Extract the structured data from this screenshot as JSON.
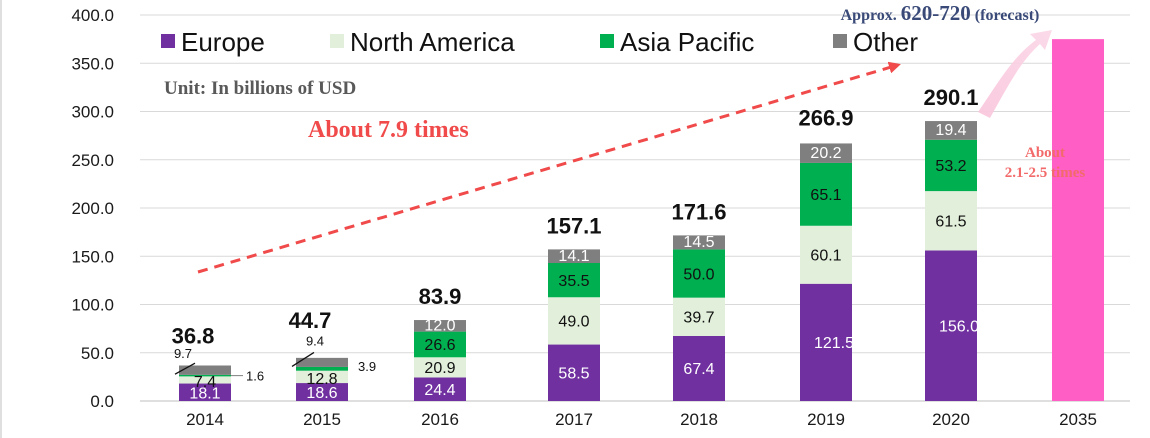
{
  "chart_data": {
    "type": "bar",
    "stacked": true,
    "categories": [
      "2014",
      "2015",
      "2016",
      "2017",
      "2018",
      "2019",
      "2020",
      "2035"
    ],
    "series": [
      {
        "name": "Europe",
        "color": "#7030a0",
        "values": [
          18.1,
          18.6,
          24.4,
          58.5,
          67.4,
          121.5,
          156.0,
          null
        ]
      },
      {
        "name": "North America",
        "color": "#e2efda",
        "values": [
          7.4,
          12.8,
          20.9,
          49.0,
          39.7,
          60.1,
          61.5,
          null
        ]
      },
      {
        "name": "Asia Pacific",
        "color": "#00b050",
        "values": [
          1.6,
          3.9,
          26.6,
          35.5,
          50.0,
          65.1,
          53.2,
          null
        ]
      },
      {
        "name": "Other",
        "color": "#7f7f7f",
        "values": [
          9.7,
          9.4,
          12.0,
          14.1,
          14.5,
          20.2,
          19.4,
          null
        ]
      }
    ],
    "segment_labels": [
      [
        "18.1",
        "18.6",
        "24.4",
        "58.5",
        "67.4",
        "121.5",
        "156.0",
        ""
      ],
      [
        "7.4",
        "12.8",
        "20.9",
        "49.0",
        "39.7",
        "60.1",
        "61.5",
        ""
      ],
      [
        "1.6",
        "3.9",
        "26.6",
        "35.5",
        "50.0",
        "65.1",
        "53.2",
        ""
      ],
      [
        "9.7",
        "9.4",
        "12.0",
        "14.1",
        "14.5",
        "20.2",
        "19.4",
        ""
      ]
    ],
    "totals": [
      "36.8",
      "44.7",
      "83.9",
      "157.1",
      "171.6",
      "266.9",
      "290.1",
      ""
    ],
    "forecast_bar": {
      "category": "2035",
      "value": 375,
      "color": "#ff5ec4"
    },
    "ylim": [
      0,
      400
    ],
    "yticks": [
      "0.0",
      "50.0",
      "100.0",
      "150.0",
      "200.0",
      "250.0",
      "300.0",
      "350.0",
      "400.0"
    ],
    "xlabel": "",
    "ylabel": "",
    "legend_position": "top-left",
    "grid": true,
    "annotations": {
      "unit": "Unit: In billions of USD",
      "growth": "About 7.9 times",
      "forecast_prefix": "Approx. ",
      "forecast_range": "620-720",
      "forecast_suffix": " (forecast)",
      "growth2_line1": "About",
      "growth2_line2": "2.1-2.5 times"
    }
  }
}
